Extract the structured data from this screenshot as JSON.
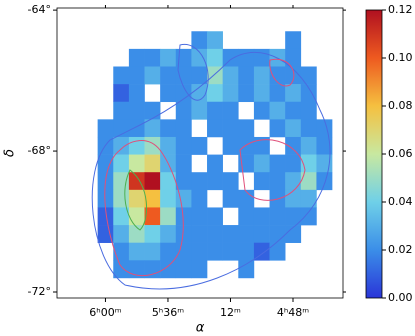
{
  "chart_data": {
    "type": "heatmap",
    "xlabel": "α",
    "ylabel": "δ",
    "xlim": [
      6.31,
      4.48
    ],
    "xticks": [
      {
        "value": 6.0,
        "label": "6ʰ00ᵐ"
      },
      {
        "value": 5.6,
        "label": "5ʰ36ᵐ"
      },
      {
        "value": 5.2,
        "label": "12ᵐ"
      },
      {
        "value": 4.8,
        "label": "4ʰ48ᵐ"
      }
    ],
    "ylim": [
      -72.17,
      -63.94
    ],
    "yticks": [
      {
        "value": -64,
        "label": "-64°"
      },
      {
        "value": -68,
        "label": "-68°"
      },
      {
        "value": -72,
        "label": "-72°"
      }
    ],
    "clim": [
      0,
      0.12
    ],
    "cticks": [
      {
        "value": 0,
        "label": "0.00"
      },
      0.02,
      0.04,
      0.06,
      0.08,
      {
        "value": 0.1,
        "label": "0.10"
      },
      0.12
    ],
    "colormap": [
      "#2a35d8",
      "#3b8ee8",
      "#6fd0e8",
      "#c8e8a0",
      "#f5c040",
      "#ee5a20",
      "#b01020"
    ],
    "x_edges": [
      6.15,
      6.05,
      5.95,
      5.85,
      5.75,
      5.65,
      5.55,
      5.45,
      5.35,
      5.25,
      5.15,
      5.05,
      4.95,
      4.85,
      4.75,
      4.65,
      4.55
    ],
    "y_edges": [
      -64.6,
      -65.1,
      -65.6,
      -66.1,
      -66.6,
      -67.1,
      -67.6,
      -68.1,
      -68.6,
      -69.1,
      -69.6,
      -70.1,
      -70.6,
      -71.1,
      -71.6
    ],
    "z": [
      [
        null,
        null,
        null,
        null,
        null,
        null,
        null,
        0.02,
        0.03,
        null,
        null,
        null,
        null,
        0.02,
        null,
        null
      ],
      [
        null,
        null,
        null,
        0.02,
        0.02,
        0.03,
        0.02,
        0.03,
        0.04,
        0.02,
        0.02,
        0.02,
        0.03,
        0.02,
        null,
        null
      ],
      [
        null,
        null,
        0.02,
        0.02,
        0.03,
        0.02,
        0.02,
        0.02,
        0.05,
        0.03,
        0.02,
        0.03,
        0.02,
        0.02,
        0.02,
        null
      ],
      [
        null,
        null,
        0.01,
        0.02,
        null,
        0.02,
        0.02,
        0.03,
        0.04,
        0.03,
        0.02,
        0.03,
        0.02,
        0.03,
        0.02,
        null
      ],
      [
        null,
        null,
        0.02,
        0.02,
        0.02,
        null,
        0.02,
        0.03,
        0.02,
        0.02,
        null,
        0.02,
        0.03,
        0.02,
        0.02,
        null
      ],
      [
        null,
        0.02,
        0.02,
        0.02,
        0.03,
        0.02,
        0.02,
        null,
        0.02,
        0.02,
        0.02,
        null,
        0.02,
        0.03,
        0.02,
        0.02
      ],
      [
        null,
        0.02,
        0.03,
        0.04,
        0.05,
        0.03,
        0.02,
        0.02,
        null,
        0.02,
        0.02,
        0.02,
        null,
        0.02,
        0.03,
        0.02
      ],
      [
        null,
        0.02,
        0.04,
        0.06,
        0.07,
        0.03,
        0.02,
        null,
        0.02,
        null,
        0.02,
        0.03,
        0.02,
        0.02,
        0.04,
        0.03
      ],
      [
        null,
        0.02,
        0.05,
        0.11,
        0.12,
        0.04,
        0.02,
        0.02,
        0.02,
        0.02,
        null,
        0.02,
        0.02,
        0.03,
        0.05,
        0.02
      ],
      [
        null,
        0.02,
        0.05,
        0.07,
        0.08,
        0.04,
        0.03,
        0.02,
        null,
        0.02,
        0.02,
        null,
        0.02,
        0.03,
        0.03,
        null
      ],
      [
        null,
        0.01,
        0.04,
        0.06,
        0.1,
        0.05,
        0.02,
        0.02,
        0.02,
        null,
        0.02,
        0.02,
        0.02,
        0.02,
        0.02,
        null
      ],
      [
        null,
        0.01,
        0.03,
        0.05,
        0.04,
        0.03,
        0.02,
        0.02,
        0.02,
        0.02,
        0.02,
        0.02,
        0.02,
        0.02,
        null,
        null
      ],
      [
        null,
        null,
        0.02,
        0.03,
        0.03,
        0.02,
        0.02,
        0.02,
        0.02,
        0.02,
        0.02,
        0.01,
        0.02,
        null,
        null,
        null
      ],
      [
        null,
        null,
        0.02,
        0.02,
        0.02,
        0.02,
        0.02,
        0.02,
        null,
        null,
        0.02,
        null,
        null,
        null,
        null,
        null
      ]
    ]
  }
}
